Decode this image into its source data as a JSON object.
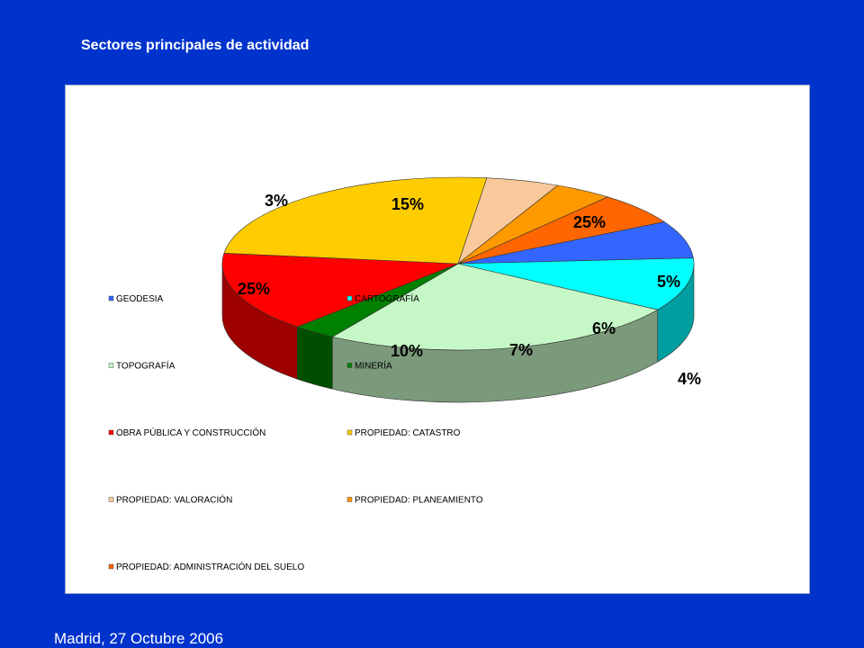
{
  "slide": {
    "title": "Sectores principales de actividad",
    "footer": "Madrid, 27 Octubre 2006"
  },
  "chart_data": {
    "type": "pie",
    "style": "3d",
    "categories": [
      "GEODESIA",
      "CARTOGRAFÍA",
      "TOPOGRAFÍA",
      "MINERÍA",
      "OBRA PÚBLICA Y CONSTRUCCIÓN",
      "PROPIEDAD: CATASTRO",
      "PROPIEDAD: VALORACIÓN",
      "PROPIEDAD: PLANEAMIENTO",
      "PROPIEDAD: ADMINISTRACIÓN DEL SUELO"
    ],
    "values": [
      7,
      10,
      25,
      3,
      15,
      25,
      5,
      4,
      6
    ],
    "value_labels": [
      "7%",
      "10%",
      "25%",
      "3%",
      "15%",
      "25%",
      "5%",
      "4%",
      "6%"
    ],
    "colors": [
      "#3366ff",
      "#00ffff",
      "#c6f7c6",
      "#008000",
      "#ff0000",
      "#ffcc00",
      "#f9c99b",
      "#ff9900",
      "#ff6600"
    ],
    "legend_position": "bottom"
  }
}
